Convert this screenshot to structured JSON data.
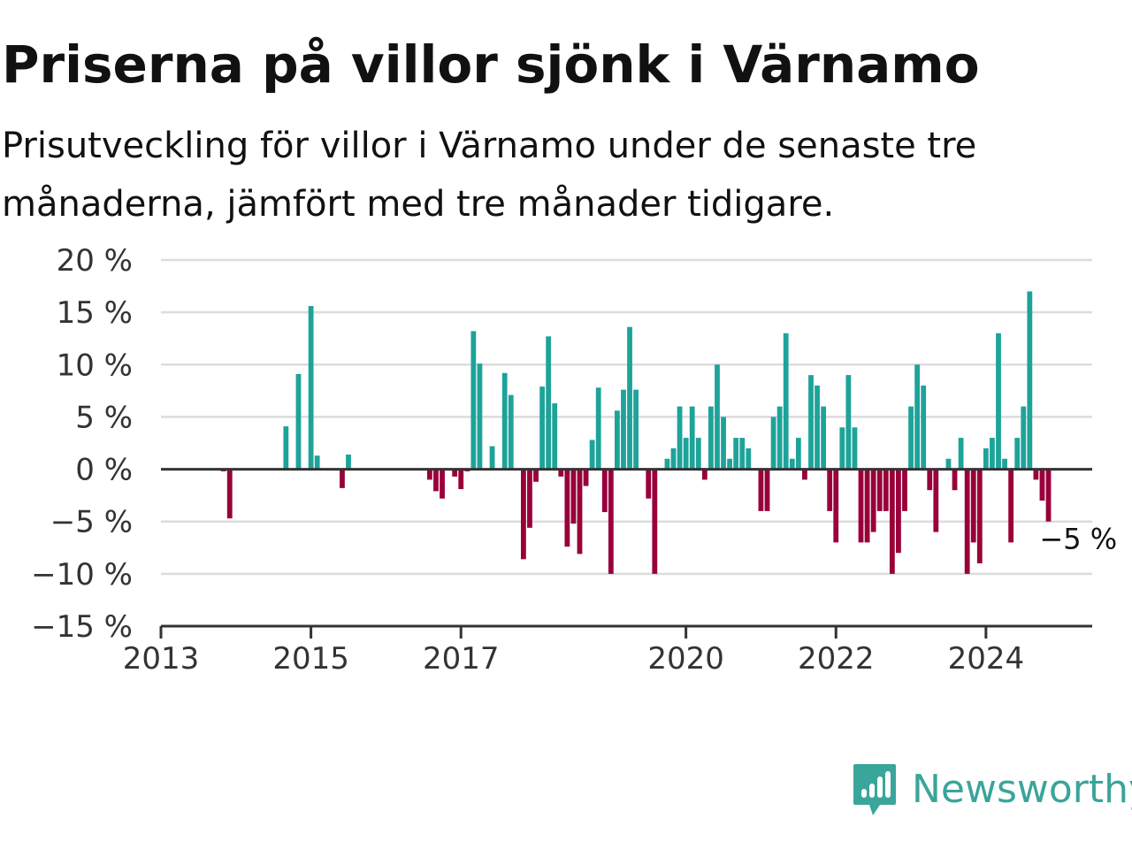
{
  "title": "Priserna på villor sjönk i Värnamo",
  "subtitle": "Prisutveckling för villor i Värnamo under de senaste tre månaderna, jämfört med tre månader tidigare.",
  "brand": {
    "name": "Newsworthy",
    "icon": "newsworthy-logo-icon",
    "color": "#3aa59a"
  },
  "colors": {
    "positive": "#1ea399",
    "negative": "#99003a",
    "grid": "#dcdcdc",
    "axis": "#333333"
  },
  "chart_data": {
    "type": "bar",
    "title": "Priserna på villor sjönk i Värnamo",
    "subtitle": "Prisutveckling för villor i Värnamo under de senaste tre månaderna, jämfört med tre månader tidigare.",
    "xlabel": "",
    "ylabel": "",
    "ylim": [
      -15,
      20
    ],
    "xlim": [
      "2013-01",
      "2025-06"
    ],
    "y_ticks": [
      20,
      15,
      10,
      5,
      0,
      -5,
      -10,
      -15
    ],
    "y_tick_labels": [
      "20 %",
      "15 %",
      "10 %",
      "5 %",
      "0 %",
      "−5 %",
      "−10 %",
      "−15 %"
    ],
    "x_ticks": [
      "2013-01",
      "2015-01",
      "2017-01",
      "2020-01",
      "2022-01",
      "2024-01"
    ],
    "x_tick_labels": [
      "2013",
      "2015",
      "2017",
      "2020",
      "2022",
      "2024"
    ],
    "grid": true,
    "legend": "none",
    "annotation": {
      "text": "−5 %",
      "month": "2024-09"
    },
    "x": [
      "2013-11",
      "2013-12",
      "2014-09",
      "2014-11",
      "2015-01",
      "2015-02",
      "2015-06",
      "2015-07",
      "2016-08",
      "2016-09",
      "2016-10",
      "2016-12",
      "2017-01",
      "2017-02",
      "2017-03",
      "2017-04",
      "2017-06",
      "2017-08",
      "2017-09",
      "2017-11",
      "2017-12",
      "2018-01",
      "2018-02",
      "2018-03",
      "2018-04",
      "2018-05",
      "2018-06",
      "2018-07",
      "2018-08",
      "2018-09",
      "2018-10",
      "2018-11",
      "2018-12",
      "2019-01",
      "2019-02",
      "2019-03",
      "2019-04",
      "2019-05",
      "2019-07",
      "2019-08",
      "2019-10",
      "2019-11",
      "2019-12",
      "2020-01",
      "2020-02",
      "2020-03",
      "2020-04",
      "2020-05",
      "2020-06",
      "2020-07",
      "2020-08",
      "2020-09",
      "2020-10",
      "2020-11",
      "2021-01",
      "2021-02",
      "2021-03",
      "2021-04",
      "2021-05",
      "2021-06",
      "2021-07",
      "2021-08",
      "2021-09",
      "2021-10",
      "2021-11",
      "2021-12",
      "2022-01",
      "2022-02",
      "2022-03",
      "2022-04",
      "2022-05",
      "2022-06",
      "2022-07",
      "2022-08",
      "2022-09",
      "2022-10",
      "2022-11",
      "2022-12",
      "2023-01",
      "2023-02",
      "2023-03",
      "2023-04",
      "2023-05",
      "2023-07",
      "2023-08",
      "2023-09",
      "2023-10",
      "2023-11",
      "2023-12",
      "2024-01",
      "2024-02",
      "2024-03",
      "2024-04",
      "2024-05",
      "2024-06",
      "2024-07",
      "2024-08",
      "2024-09",
      "2024-10",
      "2024-11"
    ],
    "values": [
      -0.2,
      -4.7,
      4.1,
      9.1,
      15.6,
      1.3,
      -1.8,
      1.4,
      -1.0,
      -2.1,
      -2.8,
      -0.7,
      -1.9,
      -0.2,
      13.2,
      10.1,
      2.2,
      9.2,
      7.1,
      -8.6,
      -5.6,
      -1.2,
      7.9,
      12.7,
      6.3,
      -0.7,
      -7.4,
      -5.2,
      -8.1,
      -1.6,
      2.8,
      7.8,
      -4.1,
      -10.0,
      5.6,
      7.6,
      13.6,
      7.6,
      -2.8,
      -10.0,
      1.0,
      2.0,
      6.0,
      3.0,
      6.0,
      3.0,
      -1.0,
      6.0,
      10.0,
      5.0,
      1.0,
      3.0,
      3.0,
      2.0,
      -4.0,
      -4.0,
      5.0,
      6.0,
      13.0,
      1.0,
      3.0,
      -1.0,
      9.0,
      8.0,
      6.0,
      -4.0,
      -7.0,
      4.0,
      9.0,
      4.0,
      -7.0,
      -7.0,
      -6.0,
      -4.0,
      -4.0,
      -10.0,
      -8.0,
      -4.0,
      6.0,
      10.0,
      8.0,
      -2.0,
      -6.0,
      1.0,
      -2.0,
      3.0,
      -10.0,
      -7.0,
      -9.0,
      2.0,
      3.0,
      13.0,
      1.0,
      -7.0,
      3.0,
      6.0,
      17.0,
      -1.0,
      -3.0,
      -5.0
    ]
  }
}
